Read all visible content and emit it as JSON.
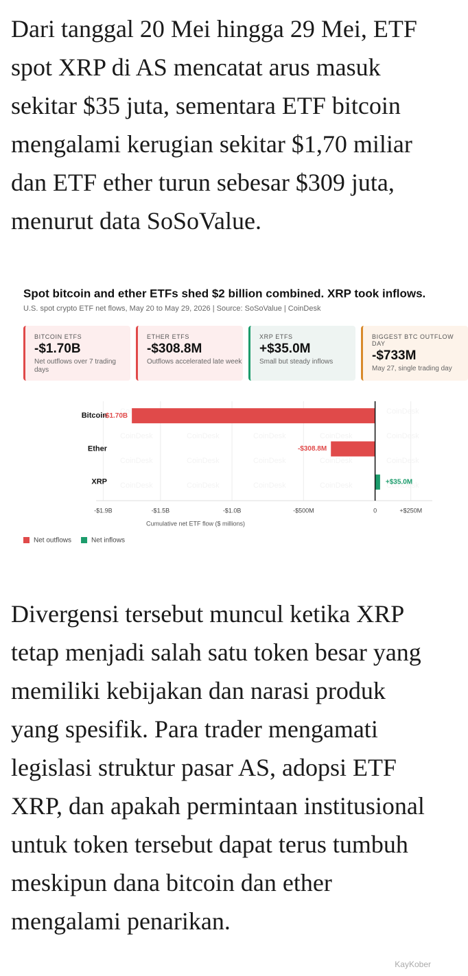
{
  "article": {
    "paragraphs": [
      [
        "Dari tanggal 20 Mei hingga 29 Mei, ETF",
        "spot XRP di AS mencatat arus masuk",
        "sekitar $35 juta, sementara ETF bitcoin",
        "mengalami kerugian sekitar $1,70 miliar",
        "dan ETF ether turun sebesar $309 juta,",
        "menurut data SoSoValue."
      ],
      [
        "Divergensi tersebut muncul ketika XRP",
        "tetap menjadi salah satu token besar yang",
        "memiliki kebijakan dan narasi produk",
        "yang spesifik. Para trader mengamati",
        "legislasi struktur pasar AS, adopsi ETF",
        "XRP, dan apakah permintaan institusional",
        "untuk token tersebut dapat terus tumbuh",
        "meskipun dana bitcoin dan ether",
        "mengalami penarikan."
      ]
    ]
  },
  "cards": [
    {
      "label": "BITCOIN ETFS",
      "value": "-$1.70B",
      "note": "Net outflows over 7 trading days"
    },
    {
      "label": "ETHER ETFS",
      "value": "-$308.8M",
      "note": "Outflows accelerated late week"
    },
    {
      "label": "XRP ETFS",
      "value": "+$35.0M",
      "note": "Small but steady inflows"
    },
    {
      "label": "BIGGEST BTC OUTFLOW DAY",
      "value": "-$733M",
      "note": "May 27, single trading day"
    }
  ],
  "chart_data": {
    "type": "hbar",
    "title": "Spot bitcoin and ether ETFs shed $2 billion combined. XRP took inflows.",
    "subtitle": "U.S. spot crypto ETF net flows, May 20 to May 29, 2026 | Source: SoSoValue | CoinDesk",
    "categories": [
      "Bitcoin",
      "Ether",
      "XRP"
    ],
    "values": [
      -1700,
      -308.8,
      35.0
    ],
    "value_labels": [
      "-$1.70B",
      "-$308.8M",
      "+$35.0M"
    ],
    "colors": [
      "#e04a4a",
      "#e04a4a",
      "#1c9c6c"
    ],
    "xlim": [
      -1950,
      400
    ],
    "xticks": [
      {
        "value": -1900,
        "label": "-$1.9B"
      },
      {
        "value": -1500,
        "label": "-$1.5B"
      },
      {
        "value": -1000,
        "label": "-$1.0B"
      },
      {
        "value": -500,
        "label": "-$500M"
      },
      0,
      {
        "value": 250,
        "label": "+$250M"
      }
    ],
    "xlabel": "Cumulative net ETF flow ($ millions)",
    "grid": true,
    "legend": [
      {
        "name": "Net outflows",
        "color": "#e04a4a"
      },
      {
        "name": "Net inflows",
        "color": "#1c9c6c"
      }
    ],
    "watermark": "CoinDesk"
  },
  "watermark": "KayKober"
}
